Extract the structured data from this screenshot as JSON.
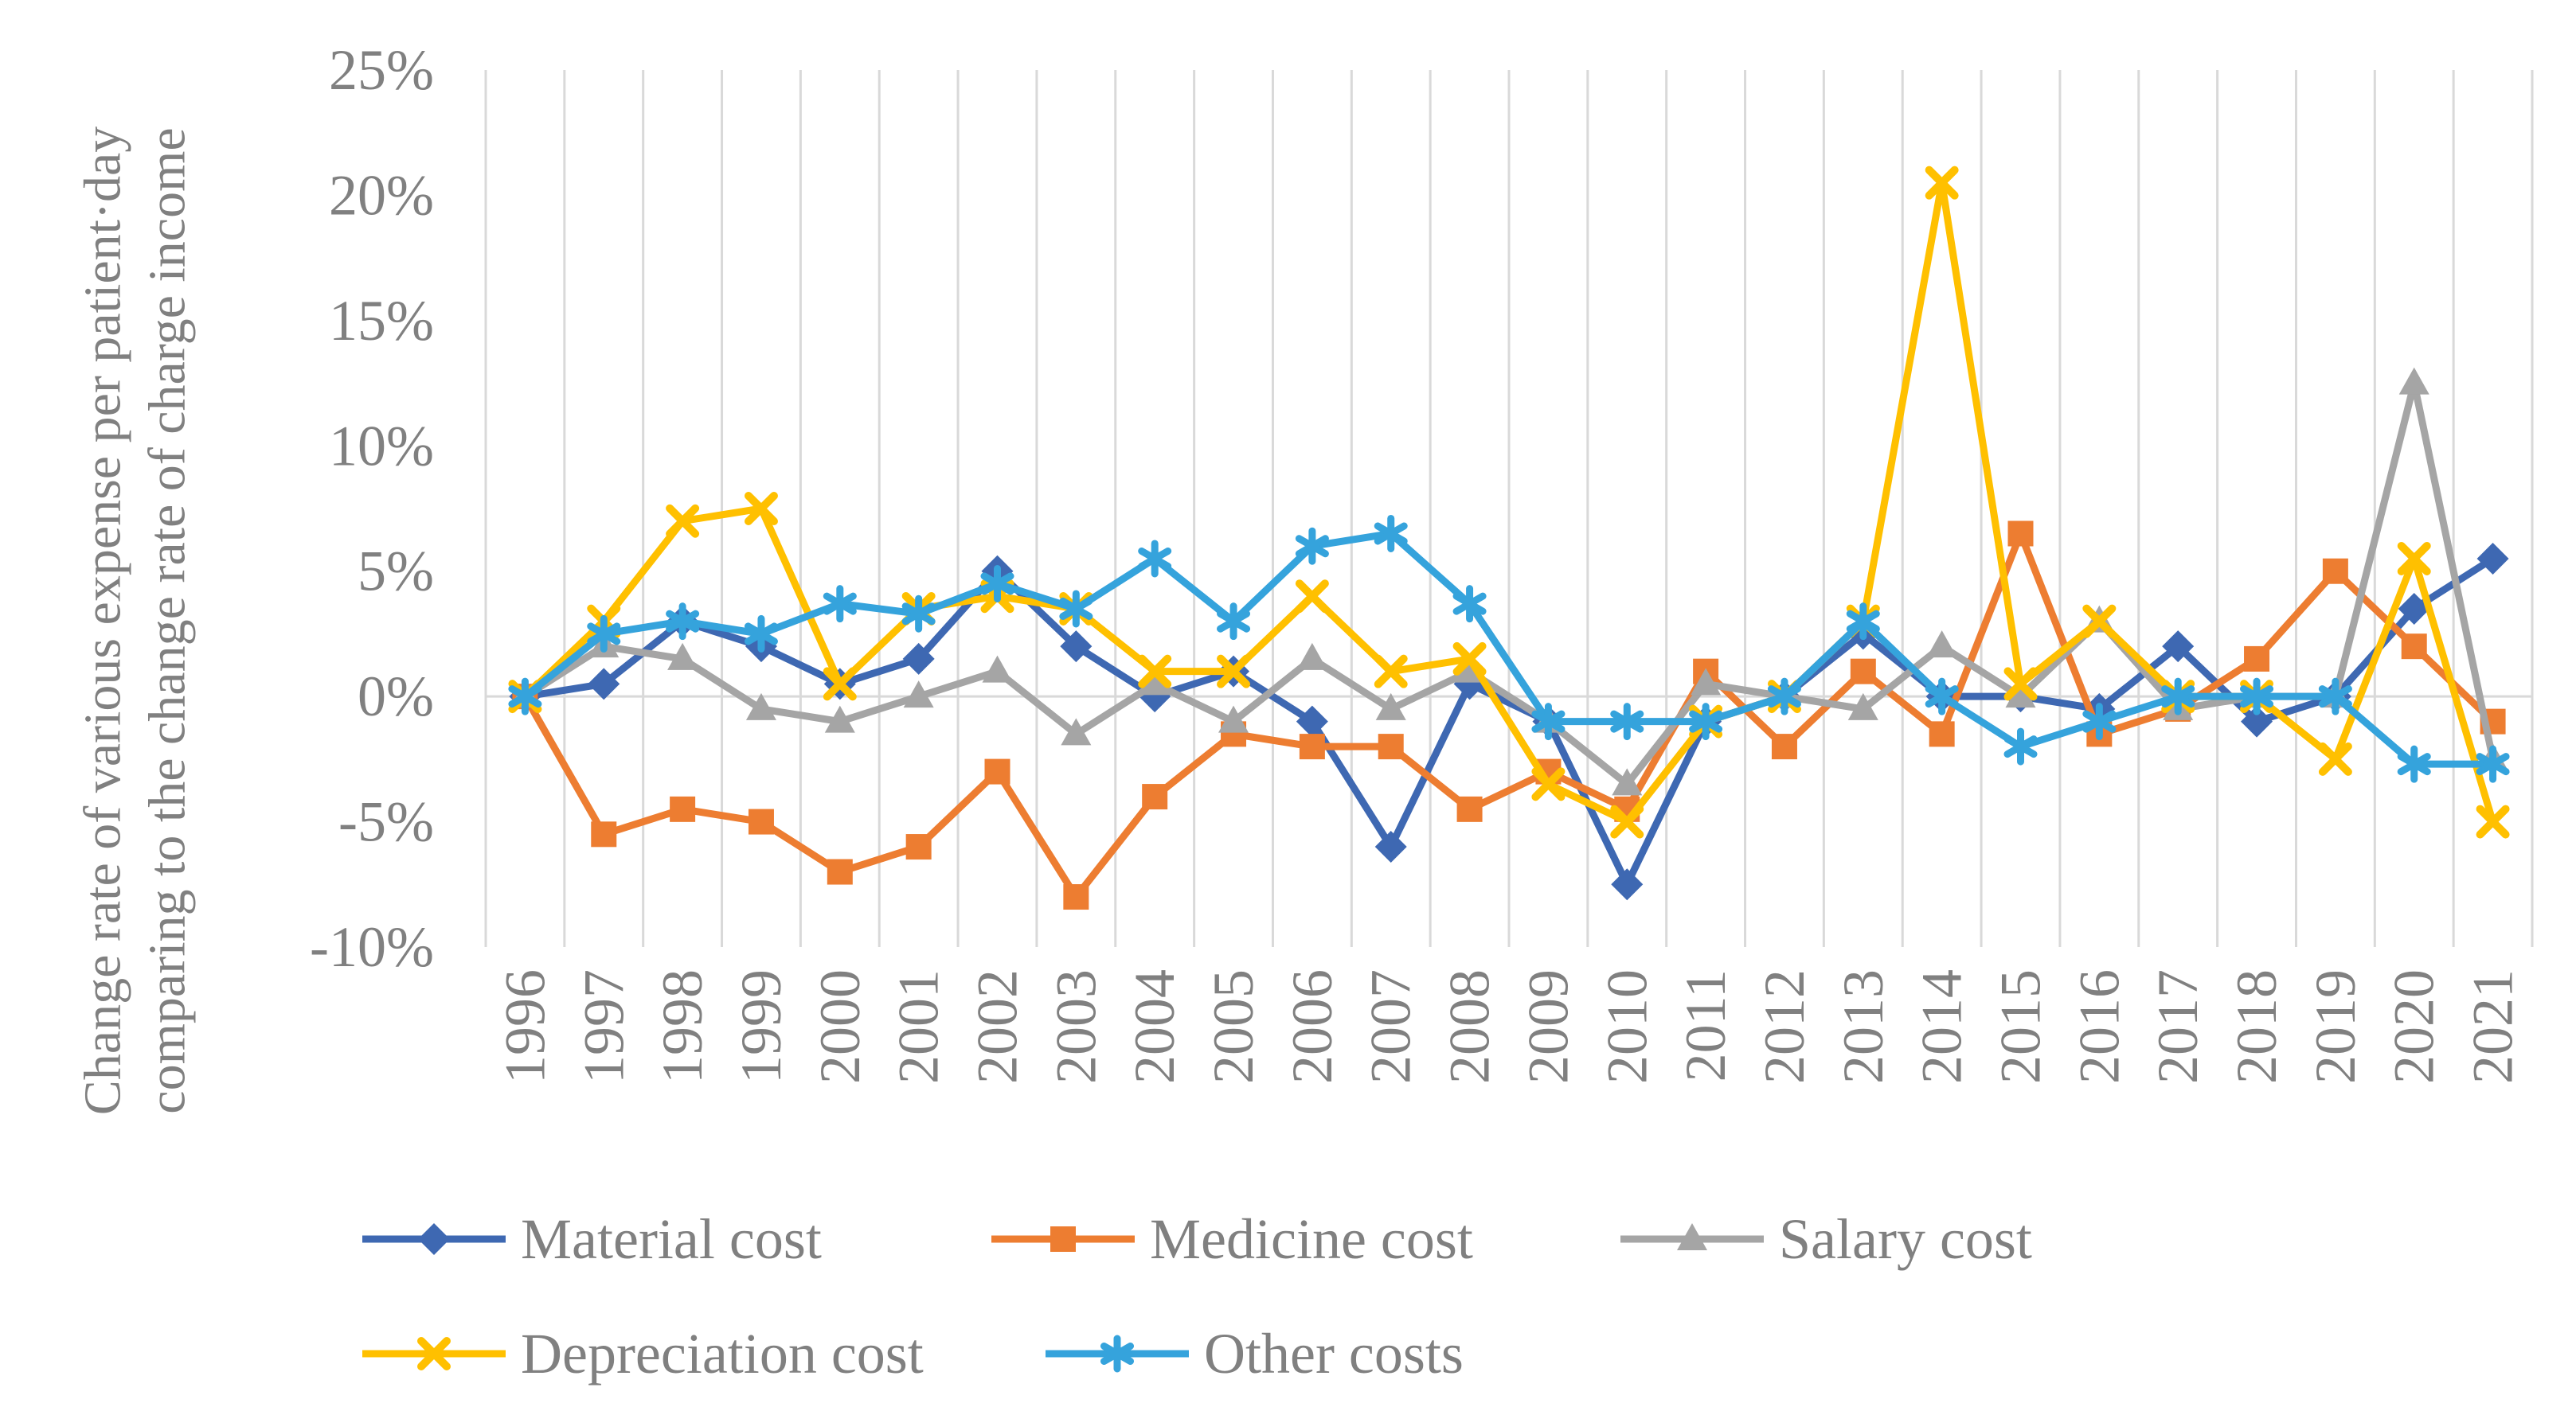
{
  "chart_data": {
    "type": "line",
    "title": "",
    "ylabel": "Change rate of various expense per patient·day comparing to the change rate of charge income",
    "xlabel": "",
    "ylim": [
      -10,
      25
    ],
    "yticks": [
      25,
      20,
      15,
      10,
      5,
      0,
      -5,
      -10
    ],
    "yticklabels": [
      "25%",
      "20%",
      "15%",
      "10%",
      "5%",
      "0%",
      "-5%",
      "-10%"
    ],
    "grid": "vertical-category-gridlines-plus-zero-line",
    "legend_position": "bottom-left-two-rows",
    "axis_text_color": "#808080",
    "gridline_color": "#D9D9D9",
    "categories": [
      "1996",
      "1997",
      "1998",
      "1999",
      "2000",
      "2001",
      "2002",
      "2003",
      "2004",
      "2005",
      "2006",
      "2007",
      "2008",
      "2009",
      "2010",
      "2011",
      "2012",
      "2013",
      "2014",
      "2015",
      "2016",
      "2017",
      "2018",
      "2019",
      "2020",
      "2021"
    ],
    "series": [
      {
        "name": "Material cost",
        "color": "#3E68B2",
        "marker": "diamond",
        "values": [
          0,
          0.5,
          3,
          2,
          0.5,
          1.5,
          5,
          2,
          0,
          1,
          -1,
          -6,
          0.5,
          -1,
          -7.5,
          -1,
          0,
          2.5,
          0,
          0,
          -0.5,
          2,
          -1,
          0,
          3.5,
          5.5
        ]
      },
      {
        "name": "Medicine cost",
        "color": "#ED7D31",
        "marker": "square",
        "values": [
          0,
          -5.5,
          -4.5,
          -5,
          -7,
          -6,
          -3,
          -8,
          -4,
          -1.5,
          -2,
          -2,
          -4.5,
          -3,
          -4.5,
          1,
          -2,
          1,
          -1.5,
          6.5,
          -1.5,
          -0.5,
          1.5,
          5,
          2,
          -1
        ]
      },
      {
        "name": "Salary cost",
        "color": "#A5A5A5",
        "marker": "triangle",
        "values": [
          0,
          2,
          1.5,
          -0.5,
          -1,
          0,
          1,
          -1.5,
          0.5,
          -1,
          1.5,
          -0.5,
          1,
          -1,
          -3.5,
          0.5,
          0,
          -0.5,
          2,
          0,
          3,
          -0.5,
          0,
          0,
          12.5,
          -2.5
        ]
      },
      {
        "name": "Depreciation cost",
        "color": "#FFC000",
        "marker": "x",
        "values": [
          0,
          3,
          7,
          7.5,
          0.5,
          3.5,
          4,
          3.5,
          1,
          1,
          4,
          1,
          1.5,
          -3.5,
          -5,
          -1,
          0,
          3,
          20.5,
          0.5,
          3,
          0,
          0,
          -2.5,
          5.5,
          -5
        ]
      },
      {
        "name": "Other costs",
        "color": "#35A3DC",
        "marker": "asterisk",
        "values": [
          0,
          2.5,
          3,
          2.5,
          3.7,
          3.3,
          4.5,
          3.5,
          5.5,
          3,
          6,
          6.5,
          3.7,
          -1,
          -1,
          -1,
          0,
          3,
          0,
          -2,
          -1,
          0,
          0,
          0,
          -2.7,
          -2.7
        ]
      }
    ]
  }
}
